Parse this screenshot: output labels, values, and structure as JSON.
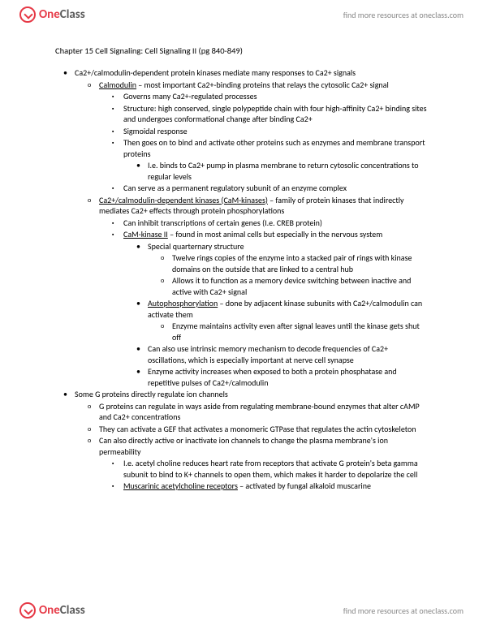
{
  "brand": {
    "one": "One",
    "class": "Class"
  },
  "tagline": "find more resources at oneclass.com",
  "chapter_title": "Chapter 15 Cell Signaling: Cell Signaling II (pg 840-849)",
  "b": [
    "Ca2+/calmodulin-dependent protein kinases mediate many responses to Ca2+ signals",
    "Calmodulin – most important Ca2+-binding proteins that relays the cytosolic Ca2+ signal",
    "Governs many Ca2+-regulated processes",
    "Structure: high conserved, single polypeptide chain with four high-affinity Ca2+ binding sites and undergoes conformational change after binding Ca2+",
    "Sigmoidal response",
    "Then goes on to bind and activate other proteins such as enzymes and membrane transport proteins",
    "I.e. binds to Ca2+ pump in plasma membrane to return cytosolic concentrations to regular levels",
    "Can serve as a permanent regulatory subunit of an enzyme complex",
    "Ca2+/calmodulin-dependent kinases (CaM-kinases) – family of protein kinases that indirectly mediates Ca2+ effects through protein phosphorylations",
    "Can inhibit transcriptions of certain genes (I.e. CREB protein)",
    "CaM-kinase II – found in most animal cells but especially in the nervous system",
    "Special quarternary structure",
    "Twelve rings copies of the enzyme into a stacked pair of rings with kinase domains on the outside that are linked to a central hub",
    "Allows it to function as a memory device switching between inactive and active with Ca2+ signal",
    "Autophosphorylation – done by adjacent kinase subunits with Ca2+/calmodulin can activate them",
    "Enzyme maintains activity even after signal leaves until the kinase gets shut off",
    "Can also use intrinsic memory mechanism to decode frequencies of Ca2+ oscillations, which is especially important at nerve cell synapse",
    "Enzyme activity increases when exposed to both a protein phosphatase and repetitive pulses of Ca2+/calmodulin",
    "Some G proteins directly regulate ion channels",
    "G proteins can regulate in ways aside from regulating membrane-bound enzymes that alter cAMP and Ca2+ concentrations",
    "They can activate a GEF that activates a monomeric GTPase that regulates the actin cytoskeleton",
    "Can also directly active or inactivate ion channels to change the plasma membrane's ion permeability",
    "I.e. acetyl choline reduces heart rate from receptors that activate G protein's beta gamma subunit to bind to K+ channels to open them, which makes it harder to depolarize the cell",
    "Muscarinic acetylcholine receptors – activated by fungal alkaloid muscarine"
  ]
}
